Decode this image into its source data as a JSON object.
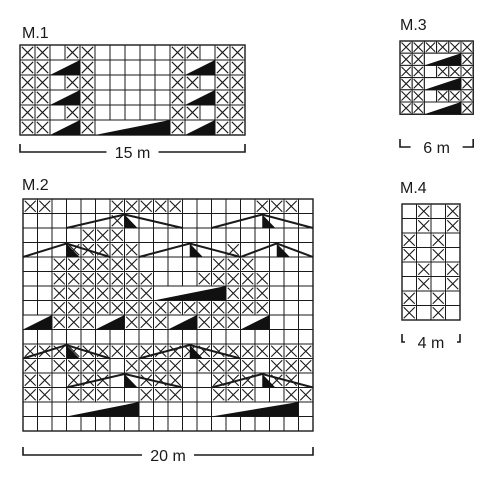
{
  "diagrams": [
    {
      "id": "m1",
      "title": "M.1",
      "width_label": "15 m",
      "cols": 15,
      "rows": 6,
      "grid": [
        "XX.XX.....XX.XX",
        "XX.XX.....XX.XX",
        "XX.XX.....XX.XX",
        "XX.XX.....XX.XX",
        "XX.XX.....XX.XX",
        "XX.XX.....XX.XX"
      ],
      "shapes": [
        {
          "type": "tri",
          "row": 1,
          "col_start": 2,
          "col_end": 3
        },
        {
          "type": "tri",
          "row": 1,
          "col_start": 11,
          "col_end": 12
        },
        {
          "type": "tri",
          "row": 3,
          "col_start": 2,
          "col_end": 3
        },
        {
          "type": "tri",
          "row": 3,
          "col_start": 11,
          "col_end": 12
        },
        {
          "type": "tri",
          "row": 5,
          "col_start": 2,
          "col_end": 3
        },
        {
          "type": "tri",
          "row": 5,
          "col_start": 5,
          "col_end": 9
        },
        {
          "type": "tri",
          "row": 5,
          "col_start": 11,
          "col_end": 12
        }
      ]
    },
    {
      "id": "m2",
      "title": "M.2",
      "width_label": "20 m",
      "cols": 20,
      "rows": 16,
      "grid": [
        "XX....XXXXX.....XXX.",
        "......X.............",
        "....XXX.............",
        "...XXXXX......X.....",
        "..XXXXXX.....XXX....",
        "..XXXXXXX...XXXXX...",
        "..XXXXXXXXXXXXXXX...",
        "..XXXXXXXXXXXXXXX...",
        "..XXXXXXXXXXXXXXX...",
        "....................",
        "XXXXXXXXXXXXXXXXXXXX",
        "X.XXXX.XXXX.XXXX.XXX",
        "XX.XXX..XXX..XXX.XX.",
        "XX.XXX..XXX..XXX..XX",
        "....................",
        "...................."
      ],
      "shapes": [
        {
          "type": "chev",
          "row": 1,
          "col_start": 3,
          "col_end": 10
        },
        {
          "type": "chev",
          "row": 1,
          "col_start": 13,
          "col_end": 19
        },
        {
          "type": "chev",
          "row": 3,
          "col_start": 0,
          "col_end": 5
        },
        {
          "type": "chev",
          "row": 3,
          "col_start": 8,
          "col_end": 14
        },
        {
          "type": "chev",
          "row": 3,
          "col_start": 15,
          "col_end": 19
        },
        {
          "type": "tri",
          "row": 6,
          "col_start": 9,
          "col_end": 13
        },
        {
          "type": "tri",
          "row": 8,
          "col_start": 0,
          "col_end": 1
        },
        {
          "type": "tri",
          "row": 8,
          "col_start": 5,
          "col_end": 6
        },
        {
          "type": "tri",
          "row": 8,
          "col_start": 10,
          "col_end": 11
        },
        {
          "type": "tri",
          "row": 8,
          "col_start": 15,
          "col_end": 16
        },
        {
          "type": "chev",
          "row": 10,
          "col_start": 0,
          "col_end": 5
        },
        {
          "type": "chev",
          "row": 10,
          "col_start": 8,
          "col_end": 14
        },
        {
          "type": "chev",
          "row": 12,
          "col_start": 3,
          "col_end": 10
        },
        {
          "type": "chev",
          "row": 12,
          "col_start": 13,
          "col_end": 19
        },
        {
          "type": "tri",
          "row": 14,
          "col_start": 3,
          "col_end": 7
        },
        {
          "type": "tri",
          "row": 14,
          "col_start": 13,
          "col_end": 18
        }
      ]
    },
    {
      "id": "m3",
      "title": "M.3",
      "width_label": "6 m",
      "cols": 6,
      "rows": 6,
      "grid": [
        "XXXXXX",
        "XX.XXX",
        "XX.XXX",
        "XX.XXX",
        "XX.XXX",
        "XX.XXX"
      ],
      "shapes": [
        {
          "type": "tri",
          "row": 1,
          "col_start": 2,
          "col_end": 4
        },
        {
          "type": "tri",
          "row": 3,
          "col_start": 2,
          "col_end": 4
        },
        {
          "type": "tri",
          "row": 5,
          "col_start": 2,
          "col_end": 4
        }
      ]
    },
    {
      "id": "m4",
      "title": "M.4",
      "width_label": "4 m",
      "cols": 4,
      "rows": 8,
      "grid": [
        ".X.X",
        ".X.X",
        "X.X.",
        "X.X.",
        ".X.X",
        ".X.X",
        "X.X.",
        "X.X."
      ],
      "shapes": []
    }
  ]
}
